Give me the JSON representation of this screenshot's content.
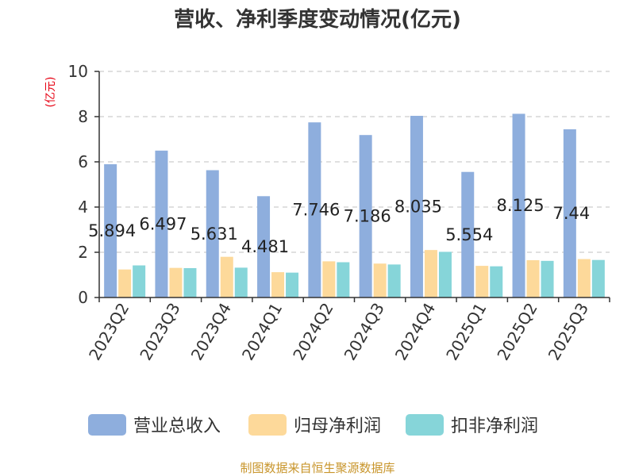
{
  "chart_data": {
    "type": "bar",
    "title": "营收、净利季度变动情况(亿元)",
    "ylabel": "(亿元)",
    "xlabel": "",
    "ylim": [
      0,
      10
    ],
    "yticks": [
      0,
      2,
      4,
      6,
      8,
      10
    ],
    "grid": true,
    "legend_position": "bottom",
    "categories": [
      "2023Q2",
      "2023Q3",
      "2023Q4",
      "2024Q1",
      "2024Q2",
      "2024Q3",
      "2024Q4",
      "2025Q1",
      "2025Q2",
      "2025Q3"
    ],
    "series": [
      {
        "name": "营业总收入",
        "color": "#8eaedd",
        "values": [
          5.894,
          6.497,
          5.631,
          4.481,
          7.746,
          7.186,
          8.035,
          5.554,
          8.125,
          7.44
        ],
        "data_labels": [
          "5.894",
          "6.497",
          "5.631",
          "4.481",
          "7.746",
          "7.186",
          "8.035",
          "5.554",
          "8.125",
          "7.44"
        ]
      },
      {
        "name": "归母净利润",
        "color": "#fdd99a",
        "values": [
          1.24,
          1.31,
          1.8,
          1.12,
          1.6,
          1.5,
          2.1,
          1.4,
          1.65,
          1.7
        ]
      },
      {
        "name": "扣非净利润",
        "color": "#86d5d9",
        "values": [
          1.42,
          1.3,
          1.32,
          1.1,
          1.56,
          1.46,
          2.02,
          1.38,
          1.62,
          1.66
        ]
      }
    ]
  },
  "footer": {
    "source": "制图数据来自恒生聚源数据库"
  }
}
